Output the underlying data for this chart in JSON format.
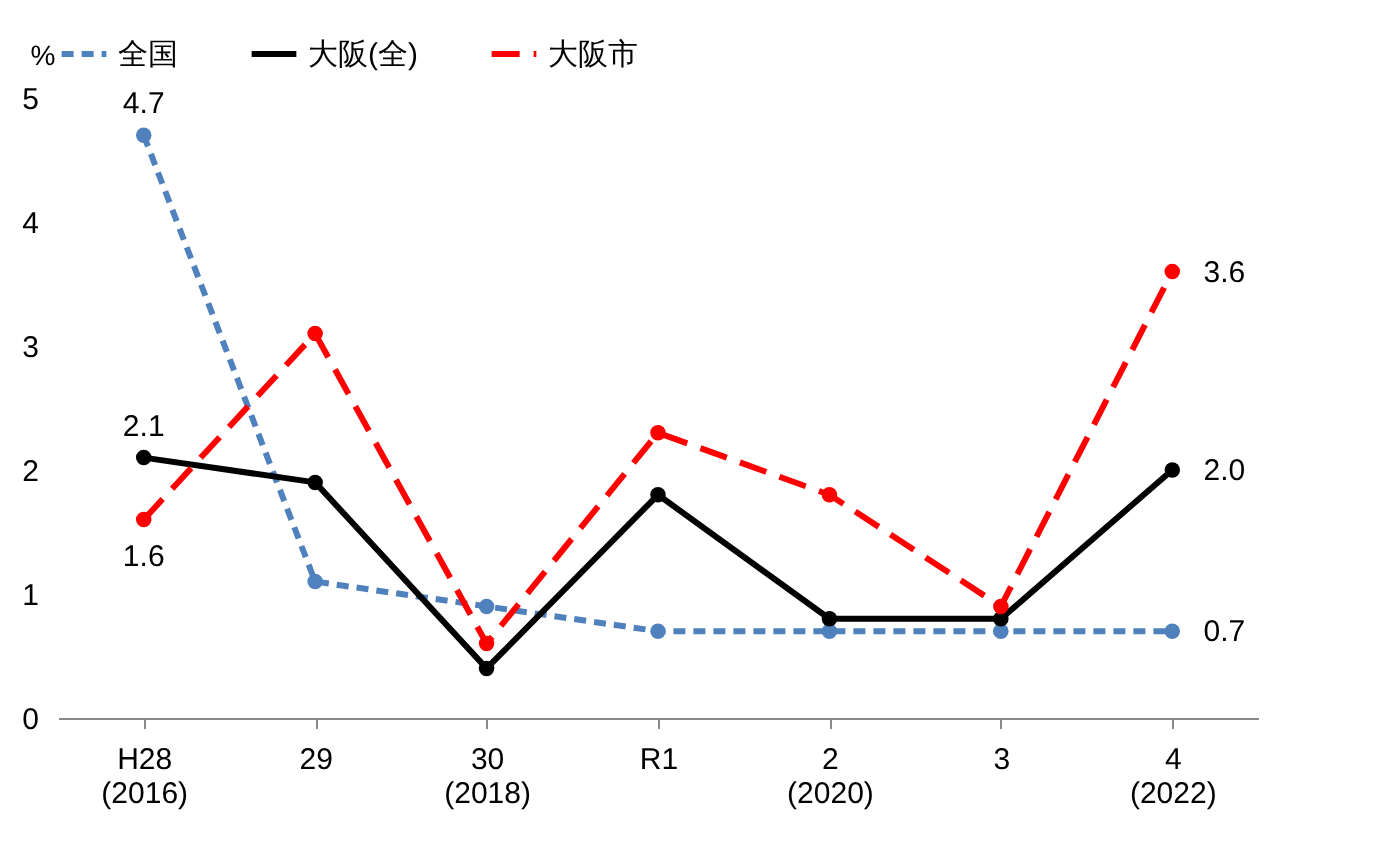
{
  "chart_data": {
    "type": "line",
    "ylabel": "%",
    "categories": [
      "H28\n(2016)",
      "29",
      "30\n(2018)",
      "R1",
      "2\n(2020)",
      "3",
      "4\n(2022)"
    ],
    "series": [
      {
        "name": "全国",
        "color": "#4f81bd",
        "line_style": "dashed",
        "values": [
          4.7,
          1.1,
          0.9,
          0.7,
          0.7,
          0.7,
          0.7
        ],
        "value_labels": [
          "4.7",
          null,
          null,
          null,
          null,
          null,
          "0.7"
        ]
      },
      {
        "name": "大阪(全)",
        "color": "#000000",
        "line_style": "solid",
        "values": [
          2.1,
          1.9,
          0.4,
          1.8,
          0.8,
          0.8,
          2.0
        ],
        "value_labels": [
          "2.1",
          null,
          null,
          null,
          null,
          null,
          "2.0"
        ]
      },
      {
        "name": "大阪市",
        "color": "#ff0000",
        "line_style": "longdash",
        "values": [
          1.6,
          3.1,
          0.6,
          2.3,
          1.8,
          0.9,
          3.6
        ],
        "value_labels": [
          "1.6",
          null,
          null,
          null,
          null,
          null,
          "3.6"
        ]
      }
    ],
    "ylim": [
      0,
      5
    ],
    "yticks": [
      0,
      1,
      2,
      3,
      4,
      5
    ],
    "grid": false,
    "legend": "top",
    "marker": "circle"
  }
}
